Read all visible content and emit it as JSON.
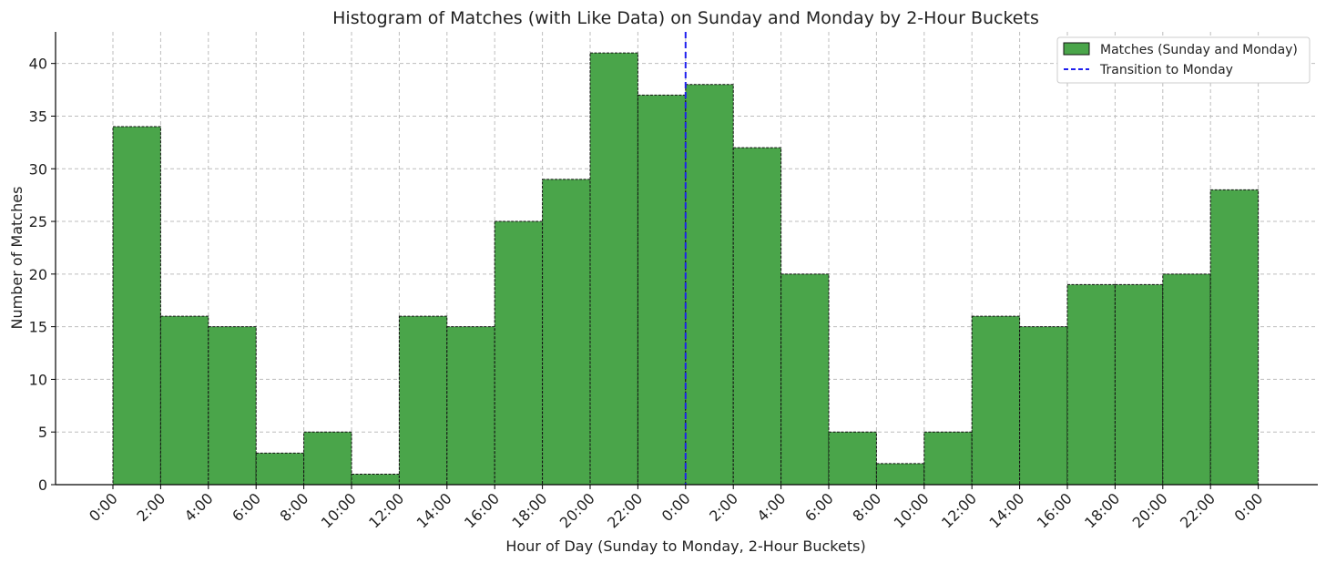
{
  "chart_data": {
    "type": "bar",
    "title": "Histogram of Matches (with Like Data) on Sunday and Monday by 2-Hour Buckets",
    "xlabel": "Hour of Day (Sunday to Monday, 2-Hour Buckets)",
    "ylabel": "Number of Matches",
    "xtick_labels": [
      "0:00",
      "2:00",
      "4:00",
      "6:00",
      "8:00",
      "10:00",
      "12:00",
      "14:00",
      "16:00",
      "18:00",
      "20:00",
      "22:00",
      "0:00",
      "2:00",
      "4:00",
      "6:00",
      "8:00",
      "10:00",
      "12:00",
      "14:00",
      "16:00",
      "18:00",
      "20:00",
      "22:00",
      "0:00"
    ],
    "yticks": [
      0,
      5,
      10,
      15,
      20,
      25,
      30,
      35,
      40
    ],
    "ylim": [
      0,
      43
    ],
    "grid": true,
    "legend_position": "top-right",
    "series": [
      {
        "name": "Matches (Sunday and Monday)",
        "color": "#4aa54a",
        "bins_start_hour": [
          0,
          2,
          4,
          6,
          8,
          10,
          12,
          14,
          16,
          18,
          20,
          22,
          24,
          26,
          28,
          30,
          32,
          34,
          36,
          38,
          40,
          42,
          44,
          46
        ],
        "values": [
          34,
          16,
          15,
          3,
          5,
          1,
          16,
          15,
          25,
          29,
          41,
          37,
          38,
          32,
          20,
          5,
          2,
          5,
          16,
          15,
          19,
          19,
          20,
          28
        ]
      }
    ],
    "annotations": [
      {
        "type": "vline",
        "name": "Transition to Monday",
        "x_hour": 24,
        "color": "#1f1fee",
        "style": "dashed"
      }
    ]
  }
}
